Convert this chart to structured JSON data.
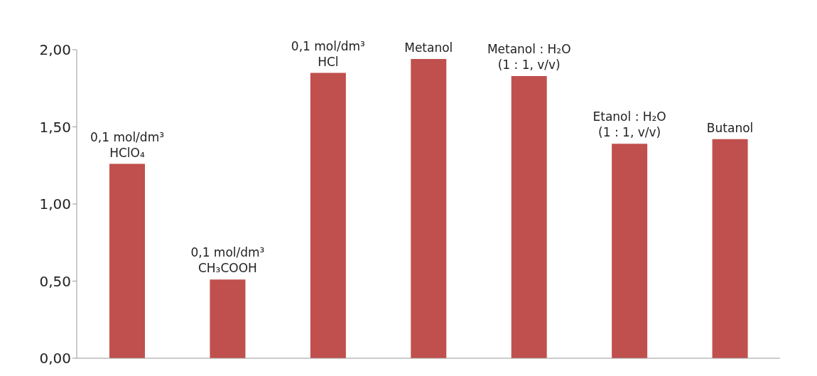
{
  "chart_data": {
    "type": "bar",
    "categories": [
      "0,1 mol/dm³\nHClO₄",
      "0,1 mol/dm³\nCH₃COOH",
      "0,1 mol/dm³\nHCl",
      "Metanol",
      "Metanol : H₂O\n(1 : 1, v/v)",
      "Etanol : H₂O\n(1 : 1, v/v)",
      "Butanol"
    ],
    "values": [
      1.26,
      0.51,
      1.85,
      1.94,
      1.83,
      1.39,
      1.42
    ],
    "color": "#c0504d",
    "ylim": [
      0,
      2
    ],
    "yticks": [
      {
        "value": 0,
        "label": "0,00"
      },
      {
        "value": 0.5,
        "label": "0,50"
      },
      {
        "value": 1,
        "label": "1,00"
      },
      {
        "value": 1.5,
        "label": "1,50"
      },
      {
        "value": 2,
        "label": "2,00"
      }
    ],
    "tick_labels": "y",
    "grid": false,
    "legend": false
  }
}
